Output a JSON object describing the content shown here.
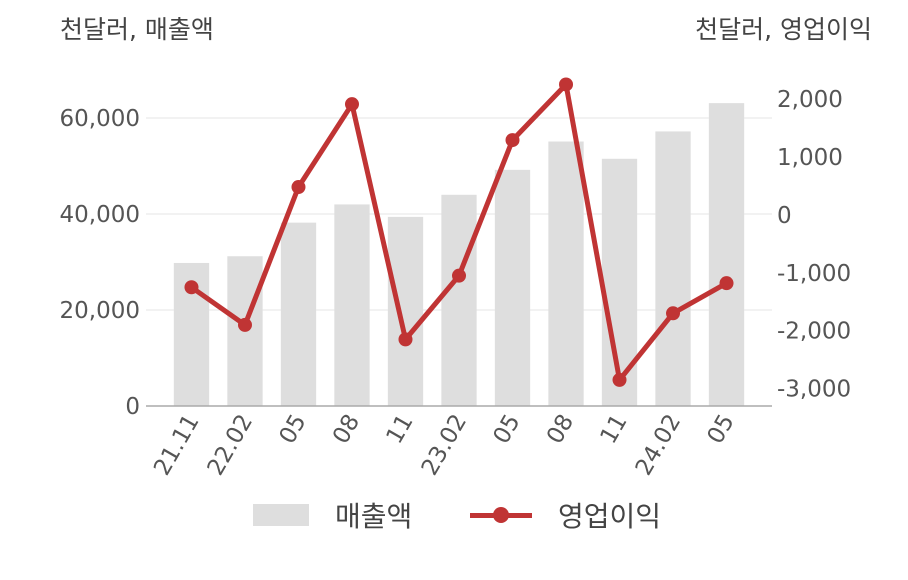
{
  "chart_data": {
    "type": "bar+line",
    "left_axis_unit": "천달러, 매출액",
    "right_axis_unit": "천달러, 영업이익",
    "categories": [
      "21.11",
      "22.02",
      "05",
      "08",
      "11",
      "23.02",
      "05",
      "08",
      "11",
      "24.02",
      "05"
    ],
    "series": [
      {
        "name": "매출액",
        "type": "bar",
        "axis": "left",
        "color": "#dedede",
        "values": [
          29800,
          31200,
          38200,
          42000,
          39400,
          44000,
          49200,
          55100,
          51500,
          57200,
          63100
        ]
      },
      {
        "name": "영업이익",
        "type": "line",
        "axis": "right",
        "color": "#c03434",
        "values": [
          -1250,
          -1900,
          480,
          1910,
          -2150,
          -1050,
          1290,
          2250,
          -2850,
          -1700,
          -1180
        ]
      }
    ],
    "left_axis": {
      "ylim": [
        0,
        70000
      ],
      "ticks": [
        0,
        20000,
        40000,
        60000
      ],
      "tick_labels": [
        "0",
        "20,000",
        "40,000",
        "60,000"
      ]
    },
    "right_axis": {
      "ylim": [
        -3300,
        2500
      ],
      "ticks": [
        -3000,
        -2000,
        -1000,
        0,
        1000,
        2000
      ],
      "tick_labels": [
        "-3,000",
        "-2,000",
        "-1,000",
        "0",
        "1,000",
        "2,000"
      ]
    },
    "grid": true,
    "legend_position": "bottom-center"
  }
}
